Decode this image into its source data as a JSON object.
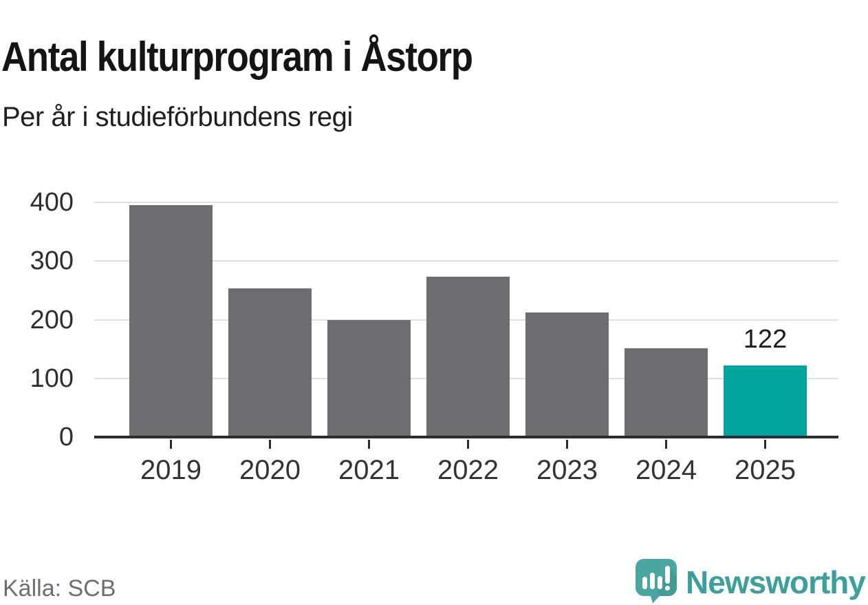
{
  "header": {
    "title": "Antal kulturprogram i Åstorp",
    "subtitle": "Per år i studieförbundens regi"
  },
  "footer": {
    "source": "Källa: SCB",
    "brand": "Newsworthy"
  },
  "colors": {
    "bar_default": "#6c6c71",
    "bar_highlight": "#00a49c",
    "axis": "#2d2d2d",
    "gridline": "#dfdfdf",
    "brand_teal": "#3d9f9b",
    "logo_bubble": "#4ba6a2",
    "logo_bubble_shadow": "#3e938f",
    "source_text": "#6b6e74"
  },
  "icons": {
    "logo": "newsworthy-speech-bubble-bar-chart-icon"
  },
  "chart_data": {
    "type": "bar",
    "title": "Antal kulturprogram i Åstorp",
    "subtitle": "Per år i studieförbundens regi",
    "categories": [
      "2019",
      "2020",
      "2021",
      "2022",
      "2023",
      "2024",
      "2025"
    ],
    "values": [
      395,
      253,
      200,
      273,
      212,
      151,
      122
    ],
    "highlight_index": 6,
    "data_label": {
      "index": 6,
      "text": "122"
    },
    "xlabel": "",
    "ylabel": "",
    "ylim": [
      0,
      400
    ],
    "yticks": [
      0,
      100,
      200,
      300,
      400
    ],
    "grid": true,
    "legend": false,
    "source": "Källa: SCB"
  }
}
